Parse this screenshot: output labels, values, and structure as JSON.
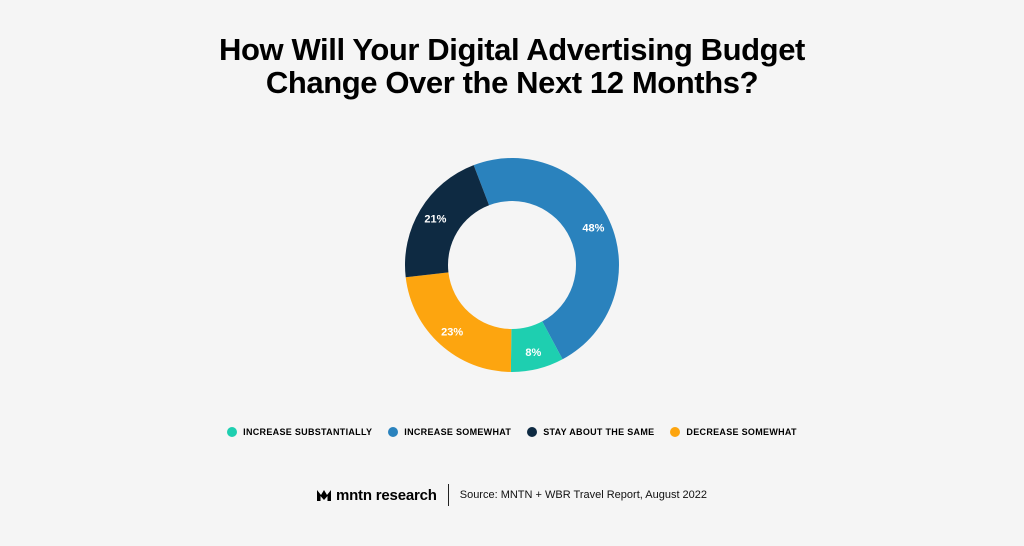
{
  "title": {
    "line1": "How Will Your Digital Advertising Budget",
    "line2": "Change Over the Next 12 Months?"
  },
  "chart_data": {
    "type": "pie",
    "variant": "donut",
    "title": "How Will Your Digital Advertising Budget Change Over the Next 12 Months?",
    "categories": [
      "INCREASE SUBSTANTIALLY",
      "INCREASE SOMEWHAT",
      "STAY ABOUT THE SAME",
      "DECREASE SOMEWHAT"
    ],
    "values": [
      8,
      48,
      21,
      23
    ],
    "labels": [
      "8%",
      "48%",
      "21%",
      "23%"
    ],
    "colors": [
      "#1ecfb0",
      "#2a82bd",
      "#0e2a42",
      "#fda50f"
    ],
    "legend_position": "bottom"
  },
  "footer": {
    "brand": "mntn research",
    "source": "Source:  MNTN + WBR Travel Report, August 2022"
  }
}
